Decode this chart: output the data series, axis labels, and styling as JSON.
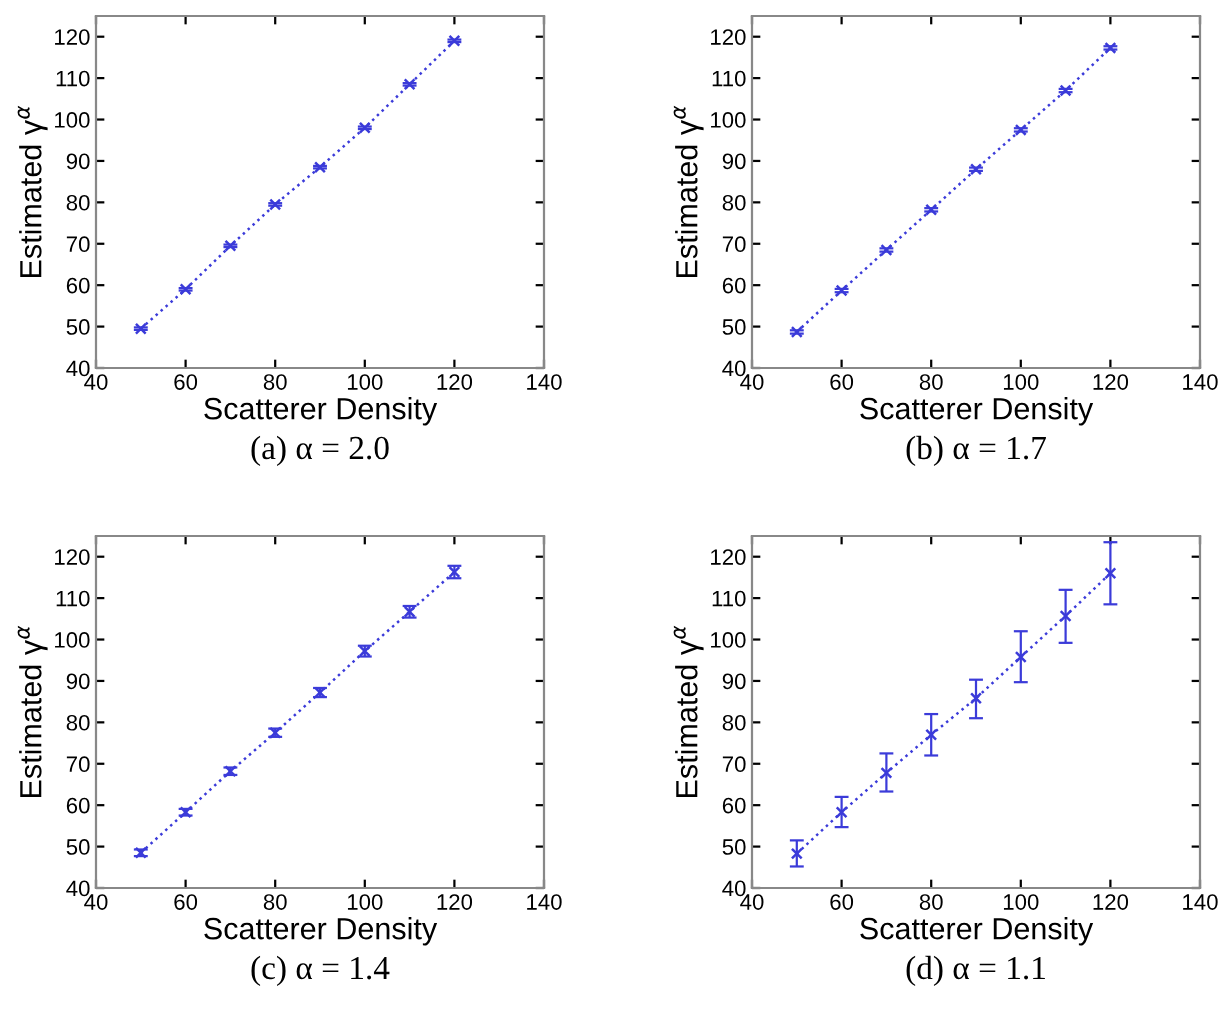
{
  "chart_data": [
    {
      "type": "line",
      "title": "(a) α = 2.0",
      "xlabel": "Scatterer Density",
      "ylabel": "Estimated γ$^{α}$",
      "x": [
        50,
        60,
        70,
        80,
        90,
        100,
        110,
        120
      ],
      "xlim": [
        40,
        140
      ],
      "xticks": [
        40,
        60,
        80,
        100,
        120,
        140
      ],
      "ylim": [
        40,
        125
      ],
      "yticks": [
        40,
        50,
        60,
        70,
        80,
        90,
        100,
        110,
        120
      ],
      "marker": "cross",
      "line_style": "dotted",
      "grid": false,
      "legend": false,
      "series": [
        {
          "color": "#3b3bd9",
          "values": [
            49.5,
            59,
            69.5,
            79.5,
            88.5,
            98,
            108.5,
            119
          ],
          "errors": [
            0.3,
            0.3,
            0.3,
            0.3,
            0.3,
            0.3,
            0.3,
            0.3
          ]
        }
      ]
    },
    {
      "type": "line",
      "title": "(b) α = 1.7",
      "xlabel": "Scatterer Density",
      "ylabel": "Estimated γ$^{α}$",
      "x": [
        50,
        60,
        70,
        80,
        90,
        100,
        110,
        120
      ],
      "xlim": [
        40,
        140
      ],
      "xticks": [
        40,
        60,
        80,
        100,
        120,
        140
      ],
      "ylim": [
        40,
        125
      ],
      "yticks": [
        40,
        50,
        60,
        70,
        80,
        90,
        100,
        110,
        120
      ],
      "marker": "cross",
      "line_style": "dotted",
      "grid": false,
      "legend": false,
      "series": [
        {
          "color": "#3b3bd9",
          "values": [
            48.7,
            58.7,
            68.5,
            78.2,
            88,
            97.5,
            107,
            117.3
          ],
          "errors": [
            0.4,
            0.4,
            0.4,
            0.4,
            0.4,
            0.4,
            0.4,
            0.4
          ]
        }
      ]
    },
    {
      "type": "line",
      "title": "(c) α = 1.4",
      "xlabel": "Scatterer Density",
      "ylabel": "Estimated γ$^{α}$",
      "x": [
        50,
        60,
        70,
        80,
        90,
        100,
        110,
        120
      ],
      "xlim": [
        40,
        140
      ],
      "xticks": [
        40,
        60,
        80,
        100,
        120,
        140
      ],
      "ylim": [
        40,
        125
      ],
      "yticks": [
        40,
        50,
        60,
        70,
        80,
        90,
        100,
        110,
        120
      ],
      "marker": "cross",
      "line_style": "dotted",
      "grid": false,
      "legend": false,
      "series": [
        {
          "color": "#3b3bd9",
          "values": [
            48.5,
            58.3,
            68.2,
            77.5,
            87.2,
            97.2,
            106.7,
            116.3
          ],
          "errors": [
            0.8,
            0.8,
            0.9,
            1,
            1.1,
            1.3,
            1.4,
            1.5
          ]
        }
      ]
    },
    {
      "type": "line",
      "title": "(d) α = 1.1",
      "xlabel": "Scatterer Density",
      "ylabel": "Estimated γ$^{α}$",
      "x": [
        50,
        60,
        70,
        80,
        90,
        100,
        110,
        120
      ],
      "xlim": [
        40,
        140
      ],
      "xticks": [
        40,
        60,
        80,
        100,
        120,
        140
      ],
      "ylim": [
        40,
        125
      ],
      "yticks": [
        40,
        50,
        60,
        70,
        80,
        90,
        100,
        110,
        120
      ],
      "marker": "cross",
      "line_style": "dotted",
      "grid": false,
      "legend": false,
      "series": [
        {
          "color": "#3b3bd9",
          "values": [
            48.3,
            58.3,
            67.8,
            77,
            85.8,
            95.8,
            105.7,
            116
          ],
          "errors": [
            [
              45.2,
              51.5
            ],
            [
              54.7,
              62
            ],
            [
              63.3,
              72.5
            ],
            [
              72,
              82
            ],
            [
              81,
              90.3
            ],
            [
              89.7,
              102
            ],
            [
              99.2,
              112
            ],
            [
              108.5,
              123.5
            ]
          ]
        }
      ]
    }
  ]
}
